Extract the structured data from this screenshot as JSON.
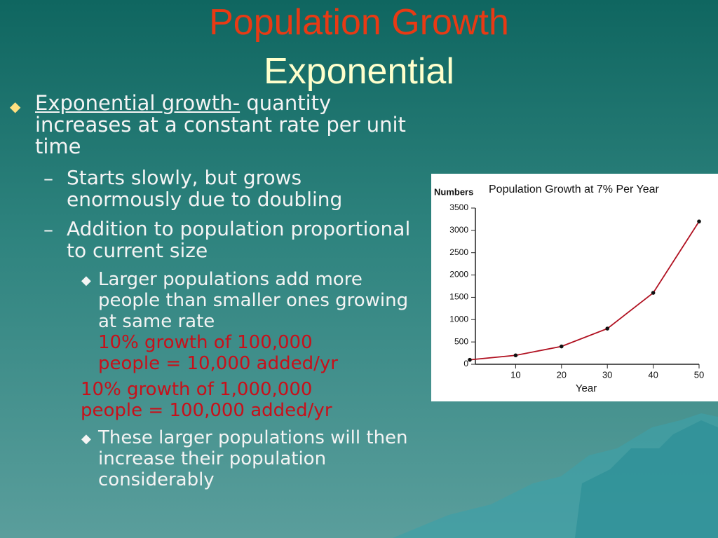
{
  "slide": {
    "title": "Population Growth",
    "subtitle": "Exponential",
    "bullets": [
      {
        "term": "Exponential growth-",
        "text": "quantity increases at a constant rate per unit time"
      },
      {
        "text": "Starts slowly, but grows enormously due to doubling"
      },
      {
        "text": "Addition to population proportional to current size"
      },
      {
        "text": "Larger populations add more people than smaller ones growing at same rate",
        "highlight": "10% growth of 100,000 people = 10,000 added/yr"
      },
      {
        "highlight": "10% growth of 1,000,000 people = 100,000 added/yr"
      },
      {
        "text": "These larger populations will then increase their population considerably"
      }
    ]
  },
  "chart_data": {
    "type": "line",
    "title": "Population Growth at 7% Per Year",
    "ylabel": "Numbers",
    "xlabel": "Year",
    "x": [
      0,
      10,
      20,
      30,
      40,
      50
    ],
    "values": [
      100,
      200,
      400,
      800,
      1600,
      3200
    ],
    "color": "#b01020",
    "xlim": [
      0,
      50
    ],
    "xticks": [
      10,
      20,
      30,
      40,
      50
    ],
    "ylim": [
      0,
      3500
    ],
    "yticks": [
      0,
      500,
      1000,
      1500,
      2000,
      2500,
      3000,
      3500
    ]
  }
}
